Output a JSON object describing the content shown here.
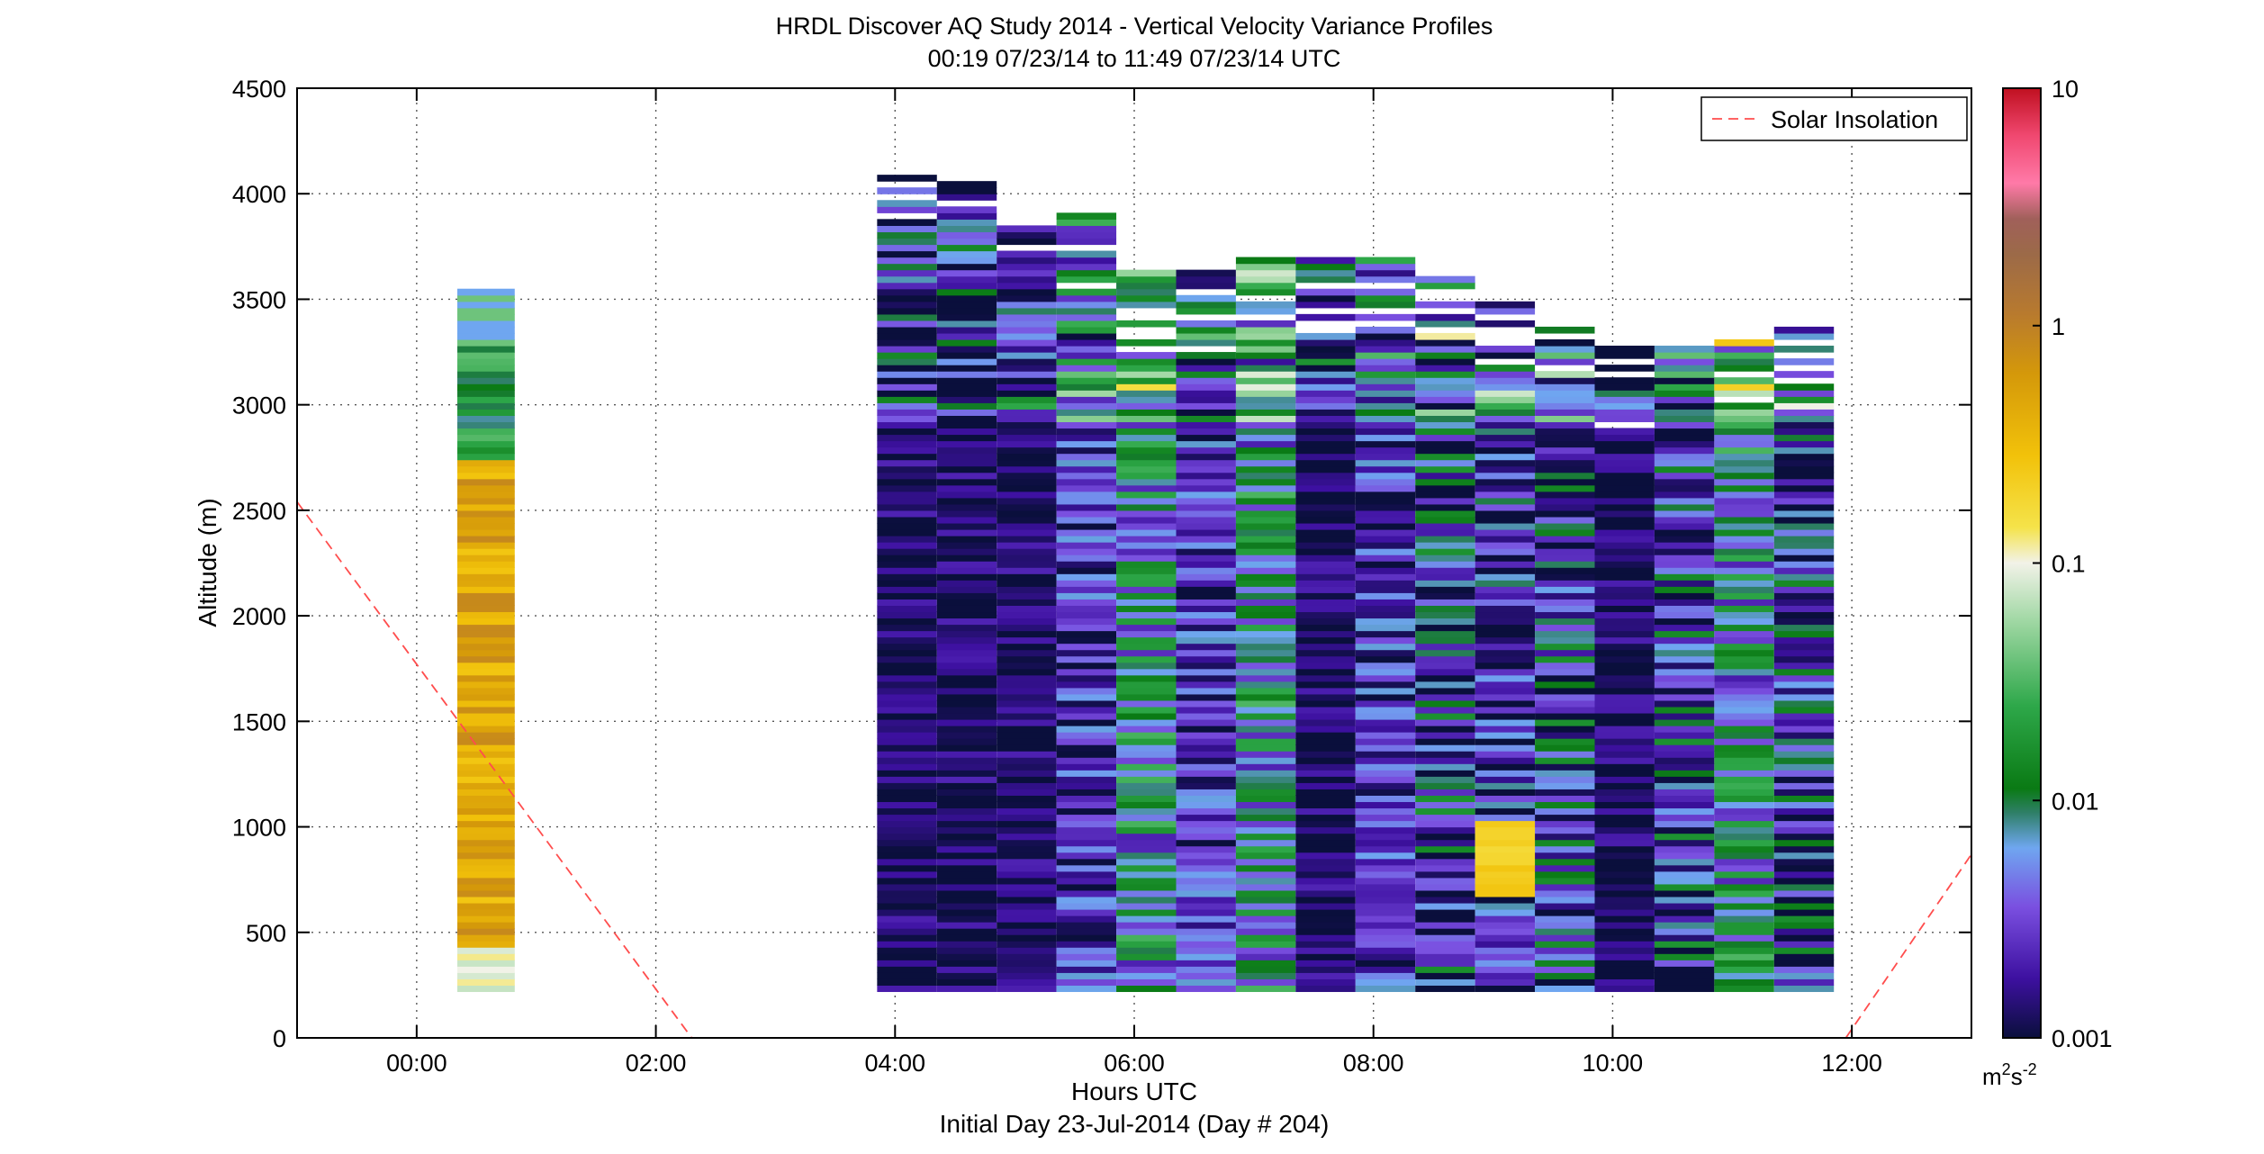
{
  "chart_data": {
    "type": "heatmap",
    "title": "HRDL Discover AQ Study 2014 - Vertical Velocity Variance Profiles",
    "subtitle": "00:19 07/23/14 to 11:49 07/23/14  UTC",
    "xlabel": "Hours UTC",
    "xlabel2": "Initial Day 23-Jul-2014 (Day # 204)",
    "ylabel": "Altitude (m)",
    "xlim_hours": [
      -1.0,
      13.0
    ],
    "ylim": [
      0,
      4500
    ],
    "x_ticks": [
      {
        "hour": 0,
        "label": "00:00"
      },
      {
        "hour": 2,
        "label": "02:00"
      },
      {
        "hour": 4,
        "label": "04:00"
      },
      {
        "hour": 6,
        "label": "06:00"
      },
      {
        "hour": 8,
        "label": "08:00"
      },
      {
        "hour": 10,
        "label": "10:00"
      },
      {
        "hour": 12,
        "label": "12:00"
      }
    ],
    "y_ticks": [
      0,
      500,
      1000,
      1500,
      2000,
      2500,
      3000,
      3500,
      4000,
      4500
    ],
    "grid": true,
    "legend": {
      "position": "top-right",
      "entries": [
        {
          "label": "Solar Insolation",
          "color": "#ff4d4d",
          "style": "dashed"
        }
      ]
    },
    "colorbar": {
      "scale": "log",
      "min": 0.001,
      "max": 10,
      "ticks": [
        {
          "value": 10,
          "label": "10"
        },
        {
          "value": 1,
          "label": "1"
        },
        {
          "value": 0.1,
          "label": "0.1"
        },
        {
          "value": 0.01,
          "label": "0.01"
        },
        {
          "value": 0.001,
          "label": "0.001"
        }
      ],
      "unit_label": "m",
      "unit_sup1": "2",
      "unit_mid": "s",
      "unit_sup2": "-2",
      "stops": [
        {
          "v": -3.0,
          "c": "#0a0f3c"
        },
        {
          "v": -2.75,
          "c": "#3d10a0"
        },
        {
          "v": -2.45,
          "c": "#7a4fe0"
        },
        {
          "v": -2.2,
          "c": "#6fa6f0"
        },
        {
          "v": -2.05,
          "c": "#2e7f66"
        },
        {
          "v": -1.95,
          "c": "#0a7a14"
        },
        {
          "v": -1.6,
          "c": "#2ea84a"
        },
        {
          "v": -1.25,
          "c": "#9ed7a2"
        },
        {
          "v": -1.0,
          "c": "#f2f2e8"
        },
        {
          "v": -0.85,
          "c": "#f5e34a"
        },
        {
          "v": -0.55,
          "c": "#f2c20a"
        },
        {
          "v": -0.2,
          "c": "#d4980a"
        },
        {
          "v": 0.05,
          "c": "#b87a2e"
        },
        {
          "v": 0.3,
          "c": "#9c6a48"
        },
        {
          "v": 0.45,
          "c": "#a0605a"
        },
        {
          "v": 0.6,
          "c": "#ff7aa8"
        },
        {
          "v": 0.8,
          "c": "#f04870"
        },
        {
          "v": 1.0,
          "c": "#c01020"
        }
      ]
    },
    "solar_insolation": {
      "segments": [
        [
          {
            "hour": -1.0,
            "alt": 2540
          },
          {
            "hour": 2.3,
            "alt": 0
          }
        ],
        [
          {
            "hour": 11.95,
            "alt": 0
          },
          {
            "hour": 13.0,
            "alt": 870
          }
        ]
      ]
    },
    "profiles": [
      {
        "hour": 0.58,
        "top": 3550,
        "bottom": 220,
        "pattern": "orange",
        "seed": 3
      },
      {
        "hour": 4.1,
        "top": 4120,
        "bottom": 220,
        "pattern": "dark",
        "seed": 11
      },
      {
        "hour": 4.6,
        "top": 4060,
        "bottom": 220,
        "pattern": "dark",
        "seed": 17
      },
      {
        "hour": 5.1,
        "top": 3870,
        "bottom": 220,
        "pattern": "dark",
        "seed": 23
      },
      {
        "hour": 5.6,
        "top": 3900,
        "bottom": 220,
        "pattern": "purple",
        "seed": 29
      },
      {
        "hour": 6.1,
        "top": 3630,
        "bottom": 220,
        "pattern": "green",
        "seed": 31
      },
      {
        "hour": 6.6,
        "top": 3620,
        "bottom": 220,
        "pattern": "purple",
        "seed": 37
      },
      {
        "hour": 7.1,
        "top": 3680,
        "bottom": 220,
        "pattern": "green",
        "seed": 41
      },
      {
        "hour": 7.6,
        "top": 3720,
        "bottom": 220,
        "pattern": "dark",
        "seed": 43
      },
      {
        "hour": 8.1,
        "top": 3690,
        "bottom": 220,
        "pattern": "purple",
        "seed": 47
      },
      {
        "hour": 8.6,
        "top": 3600,
        "bottom": 220,
        "pattern": "mixed",
        "seed": 53
      },
      {
        "hour": 9.1,
        "top": 3480,
        "bottom": 220,
        "pattern": "yellowlow",
        "seed": 59
      },
      {
        "hour": 9.6,
        "top": 3350,
        "bottom": 220,
        "pattern": "mixed",
        "seed": 61
      },
      {
        "hour": 10.1,
        "top": 3270,
        "bottom": 220,
        "pattern": "dark",
        "seed": 67
      },
      {
        "hour": 10.6,
        "top": 3270,
        "bottom": 220,
        "pattern": "mixed",
        "seed": 71
      },
      {
        "hour": 11.1,
        "top": 3300,
        "bottom": 220,
        "pattern": "green",
        "seed": 73
      },
      {
        "hour": 11.6,
        "top": 3360,
        "bottom": 220,
        "pattern": "mixed",
        "seed": 79
      }
    ]
  }
}
